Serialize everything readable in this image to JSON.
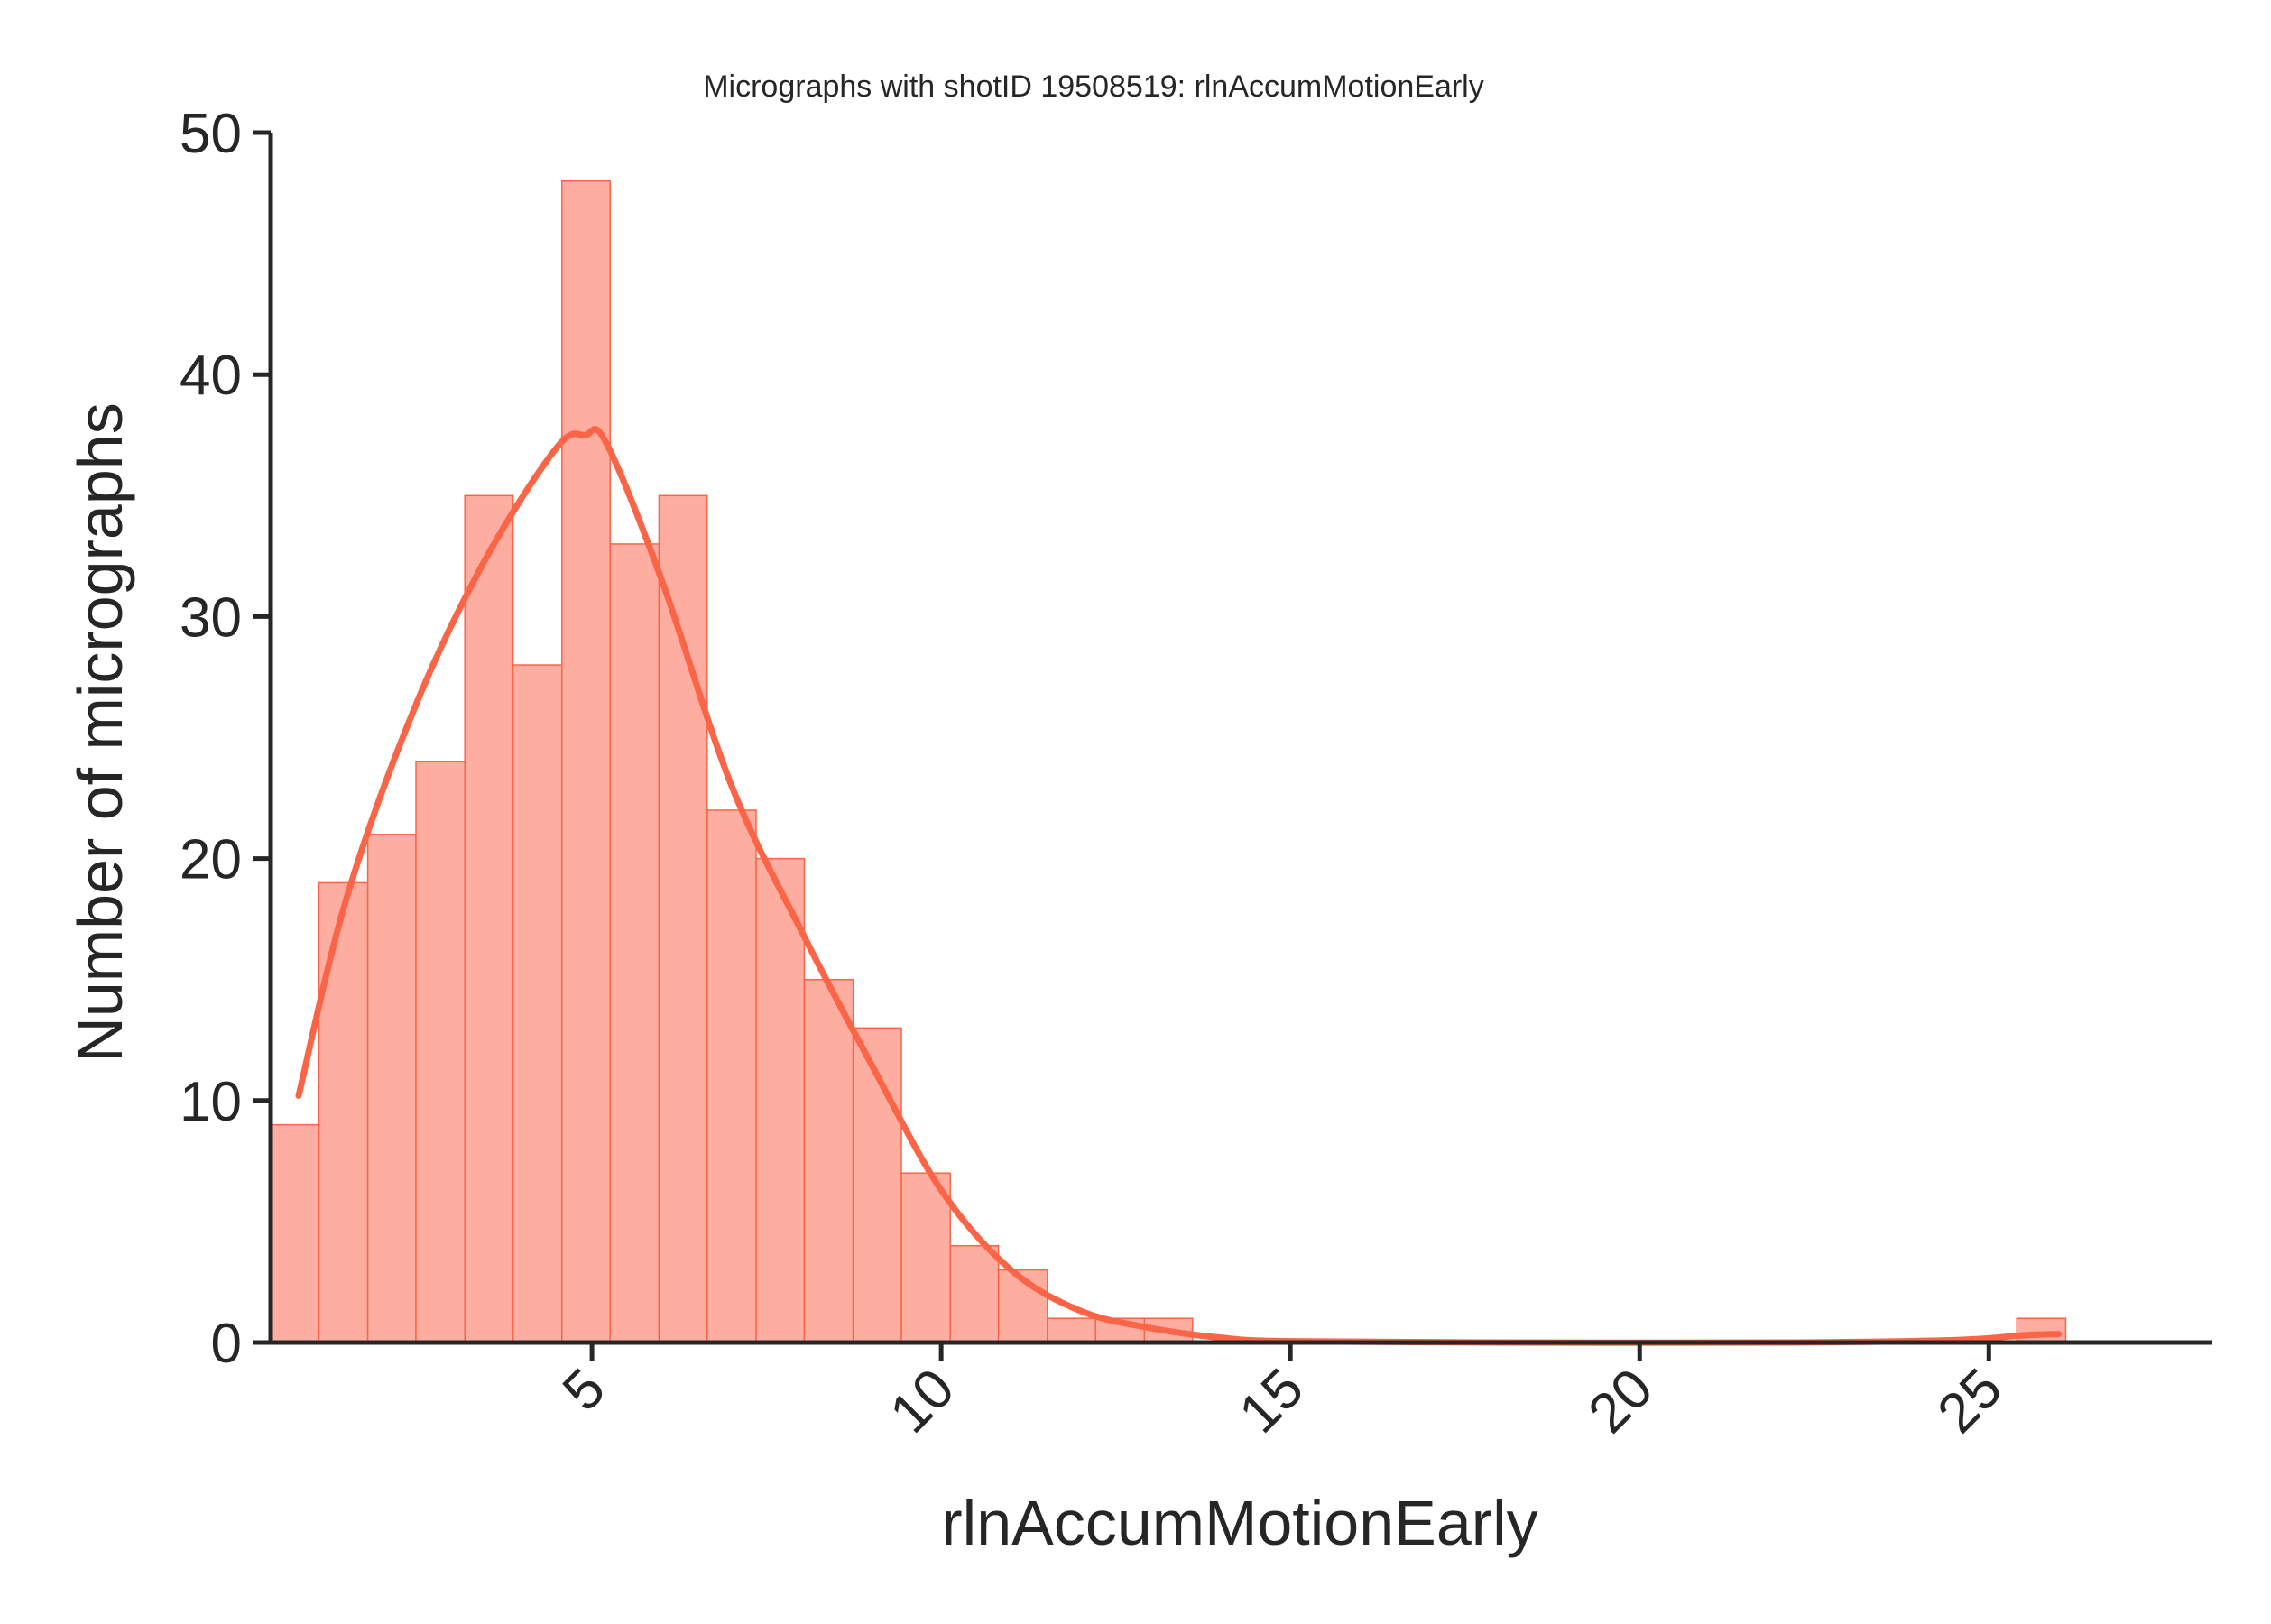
{
  "chart_data": {
    "type": "histogram",
    "title": "Micrographs with shotID 19508519: rlnAccumMotionEarly",
    "xlabel": "rlnAccumMotionEarly",
    "ylabel": "Number of micrographs",
    "xlim": [
      0.4,
      28.2
    ],
    "ylim": [
      0,
      50
    ],
    "xticks": [
      5,
      10,
      15,
      20,
      25
    ],
    "yticks": [
      0,
      10,
      20,
      30,
      40,
      50
    ],
    "grid": false,
    "colors": {
      "bar_fill": "#fdaea1",
      "bar_edge": "#fa6548",
      "kde": "#fa6548",
      "axis": "#262626"
    },
    "bins": [
      {
        "x0": 0.4,
        "x1": 1.09,
        "count": 9
      },
      {
        "x0": 1.09,
        "x1": 1.79,
        "count": 19
      },
      {
        "x0": 1.79,
        "x1": 2.48,
        "count": 21
      },
      {
        "x0": 2.48,
        "x1": 3.18,
        "count": 24
      },
      {
        "x0": 3.18,
        "x1": 3.87,
        "count": 35
      },
      {
        "x0": 3.87,
        "x1": 4.57,
        "count": 28
      },
      {
        "x0": 4.57,
        "x1": 5.26,
        "count": 48
      },
      {
        "x0": 5.26,
        "x1": 5.96,
        "count": 33
      },
      {
        "x0": 5.96,
        "x1": 6.65,
        "count": 35
      },
      {
        "x0": 6.65,
        "x1": 7.35,
        "count": 22
      },
      {
        "x0": 7.35,
        "x1": 8.04,
        "count": 20
      },
      {
        "x0": 8.04,
        "x1": 8.74,
        "count": 15
      },
      {
        "x0": 8.74,
        "x1": 9.43,
        "count": 13
      },
      {
        "x0": 9.43,
        "x1": 10.13,
        "count": 7
      },
      {
        "x0": 10.13,
        "x1": 10.82,
        "count": 4
      },
      {
        "x0": 10.82,
        "x1": 11.52,
        "count": 3
      },
      {
        "x0": 11.52,
        "x1": 12.21,
        "count": 1
      },
      {
        "x0": 12.21,
        "x1": 12.91,
        "count": 1
      },
      {
        "x0": 12.91,
        "x1": 13.6,
        "count": 1
      },
      {
        "x0": 25.4,
        "x1": 26.1,
        "count": 1
      }
    ],
    "kde": {
      "x": [
        0.8,
        1.5,
        2.5,
        3.5,
        4.5,
        4.9,
        5.2,
        6.0,
        7.0,
        8.0,
        9.0,
        10.0,
        11.0,
        12.0,
        13.0,
        14.0,
        15.0,
        18.0,
        22.0,
        24.5,
        25.5,
        26.0
      ],
      "y": [
        10.2,
        18.5,
        26.5,
        32.5,
        37.0,
        37.5,
        37.2,
        31.5,
        23.0,
        17.0,
        11.5,
        6.3,
        3.0,
        1.3,
        0.6,
        0.2,
        0.05,
        0.0,
        0.0,
        0.1,
        0.3,
        0.35
      ]
    }
  }
}
